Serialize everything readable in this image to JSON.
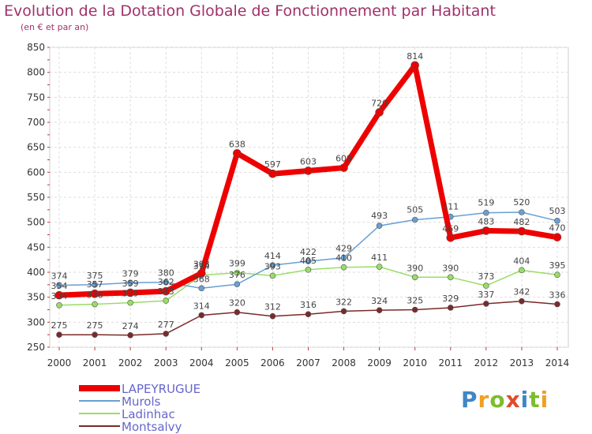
{
  "chart_data": {
    "type": "line",
    "title": "Evolution de la Dotation Globale de Fonctionnement par Habitant",
    "subtitle": "(en € et par an)",
    "x": [
      "2000",
      "2001",
      "2002",
      "2003",
      "2004",
      "2005",
      "2006",
      "2007",
      "2008",
      "2009",
      "2010",
      "2011",
      "2012",
      "2013",
      "2014"
    ],
    "ylim": [
      250,
      850
    ],
    "yticks": [
      250,
      300,
      350,
      400,
      450,
      500,
      550,
      600,
      650,
      700,
      750,
      800,
      850
    ],
    "grid": true,
    "legend_position": "bottom-left",
    "series": [
      {
        "name": "LAPEYRUGUE",
        "color": "#ee0000",
        "values": [
          354,
          357,
          359,
          362,
          398,
          638,
          597,
          603,
          609,
          720,
          814,
          469,
          483,
          482,
          470
        ]
      },
      {
        "name": "Murols",
        "color": "#6a9fd1",
        "values": [
          374,
          375,
          379,
          380,
          368,
          376,
          414,
          422,
          429,
          493,
          505,
          511,
          519,
          520,
          503
        ]
      },
      {
        "name": "Ladinhac",
        "color": "#99dd66",
        "values": [
          334,
          336,
          339,
          343,
          394,
          399,
          393,
          405,
          410,
          411,
          390,
          390,
          373,
          404,
          395
        ]
      },
      {
        "name": "Montsalvy",
        "color": "#7a2a2a",
        "values": [
          275,
          275,
          274,
          277,
          314,
          320,
          312,
          316,
          322,
          324,
          325,
          329,
          337,
          342,
          336
        ]
      }
    ],
    "data_labels": {
      "LAPEYRUGUE": [
        "354",
        "357",
        "359",
        "362",
        "398",
        "638",
        "597",
        "603",
        "609",
        "720",
        "814",
        "469",
        "483",
        "482",
        "470"
      ],
      "Murols": [
        "374",
        "375",
        "379",
        "380",
        "368",
        "376",
        "414",
        "422",
        "429",
        "493",
        "505",
        "511",
        "519",
        "520",
        "503"
      ],
      "Ladinhac": [
        "334",
        "336",
        "339",
        "343",
        "394",
        "399",
        "393",
        "405",
        "410",
        "411",
        "390",
        "390",
        "373",
        "404",
        "395"
      ],
      "Montsalvy": [
        "275",
        "275",
        "274",
        "277",
        "314",
        "320",
        "312",
        "316",
        "322",
        "324",
        "325",
        "329",
        "337",
        "342",
        "336"
      ]
    }
  },
  "logo": {
    "text": "Proxiti"
  }
}
